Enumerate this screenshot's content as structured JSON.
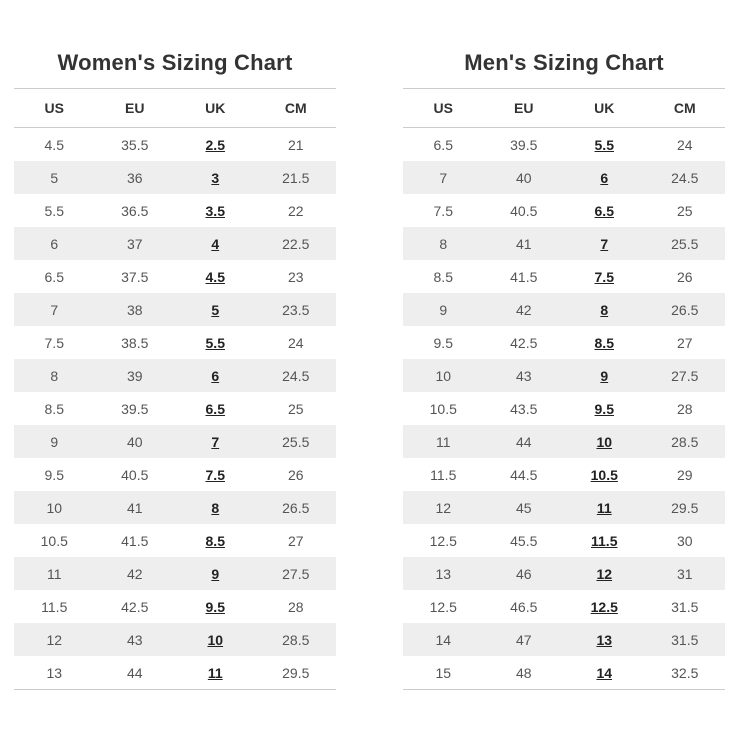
{
  "colors": {
    "page_background": "#ffffff",
    "title_text": "#333333",
    "header_text": "#333333",
    "cell_text": "#555555",
    "uk_link_text": "#222222",
    "row_alt_background": "#eeeeee",
    "table_border": "#cccccc"
  },
  "chart_data": [
    {
      "type": "table",
      "title": "Women's Sizing Chart",
      "columns": [
        "US",
        "EU",
        "UK",
        "CM"
      ],
      "link_column": "UK",
      "rows": [
        [
          "4.5",
          "35.5",
          "2.5",
          "21"
        ],
        [
          "5",
          "36",
          "3",
          "21.5"
        ],
        [
          "5.5",
          "36.5",
          "3.5",
          "22"
        ],
        [
          "6",
          "37",
          "4",
          "22.5"
        ],
        [
          "6.5",
          "37.5",
          "4.5",
          "23"
        ],
        [
          "7",
          "38",
          "5",
          "23.5"
        ],
        [
          "7.5",
          "38.5",
          "5.5",
          "24"
        ],
        [
          "8",
          "39",
          "6",
          "24.5"
        ],
        [
          "8.5",
          "39.5",
          "6.5",
          "25"
        ],
        [
          "9",
          "40",
          "7",
          "25.5"
        ],
        [
          "9.5",
          "40.5",
          "7.5",
          "26"
        ],
        [
          "10",
          "41",
          "8",
          "26.5"
        ],
        [
          "10.5",
          "41.5",
          "8.5",
          "27"
        ],
        [
          "11",
          "42",
          "9",
          "27.5"
        ],
        [
          "11.5",
          "42.5",
          "9.5",
          "28"
        ],
        [
          "12",
          "43",
          "10",
          "28.5"
        ],
        [
          "13",
          "44",
          "11",
          "29.5"
        ]
      ]
    },
    {
      "type": "table",
      "title": "Men's Sizing Chart",
      "columns": [
        "US",
        "EU",
        "UK",
        "CM"
      ],
      "link_column": "UK",
      "rows": [
        [
          "6.5",
          "39.5",
          "5.5",
          "24"
        ],
        [
          "7",
          "40",
          "6",
          "24.5"
        ],
        [
          "7.5",
          "40.5",
          "6.5",
          "25"
        ],
        [
          "8",
          "41",
          "7",
          "25.5"
        ],
        [
          "8.5",
          "41.5",
          "7.5",
          "26"
        ],
        [
          "9",
          "42",
          "8",
          "26.5"
        ],
        [
          "9.5",
          "42.5",
          "8.5",
          "27"
        ],
        [
          "10",
          "43",
          "9",
          "27.5"
        ],
        [
          "10.5",
          "43.5",
          "9.5",
          "28"
        ],
        [
          "11",
          "44",
          "10",
          "28.5"
        ],
        [
          "11.5",
          "44.5",
          "10.5",
          "29"
        ],
        [
          "12",
          "45",
          "11",
          "29.5"
        ],
        [
          "12.5",
          "45.5",
          "11.5",
          "30"
        ],
        [
          "13",
          "46",
          "12",
          "31"
        ],
        [
          "12.5",
          "46.5",
          "12.5",
          "31.5"
        ],
        [
          "14",
          "47",
          "13",
          "31.5"
        ],
        [
          "15",
          "48",
          "14",
          "32.5"
        ]
      ]
    }
  ]
}
